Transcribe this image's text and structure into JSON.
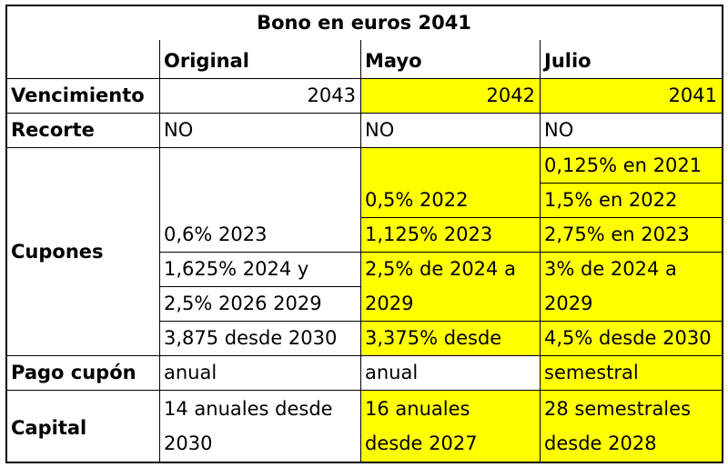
{
  "title": "Bono en euros 2041",
  "columns": [
    "Original",
    "Mayo",
    "Julio"
  ],
  "rows": {
    "vencimiento": {
      "label": "Vencimiento",
      "original": "2043",
      "mayo": "2042",
      "julio": "2041"
    },
    "recorte": {
      "label": "Recorte",
      "original": "NO",
      "mayo": "NO",
      "julio": "NO"
    },
    "cupones": {
      "label": "Cupones",
      "original": [
        "0,6% 2023",
        "1,625% 2024 y",
        "2,5% 2026  2029",
        "3,875 desde 2030"
      ],
      "mayo": [
        "0,5% 2022",
        "1,125% 2023",
        "2,5% de 2024 a",
        "2029",
        "3,375% desde"
      ],
      "julio": [
        "0,125% en 2021",
        "1,5% en 2022",
        "2,75% en 2023",
        "3% de 2024 a",
        "2029",
        "4,5% desde 2030"
      ]
    },
    "pago_cupon": {
      "label": "Pago cupón",
      "original": "anual",
      "mayo": "anual",
      "julio": "semestral"
    },
    "capital": {
      "label": "Capital",
      "original": [
        "14 anuales desde",
        "2030"
      ],
      "mayo": [
        "16 anuales",
        "desde 2027"
      ],
      "julio": [
        "28 semestrales",
        "desde 2028"
      ]
    }
  },
  "colors": {
    "highlight": "#ffff00",
    "grid": "#000000"
  }
}
